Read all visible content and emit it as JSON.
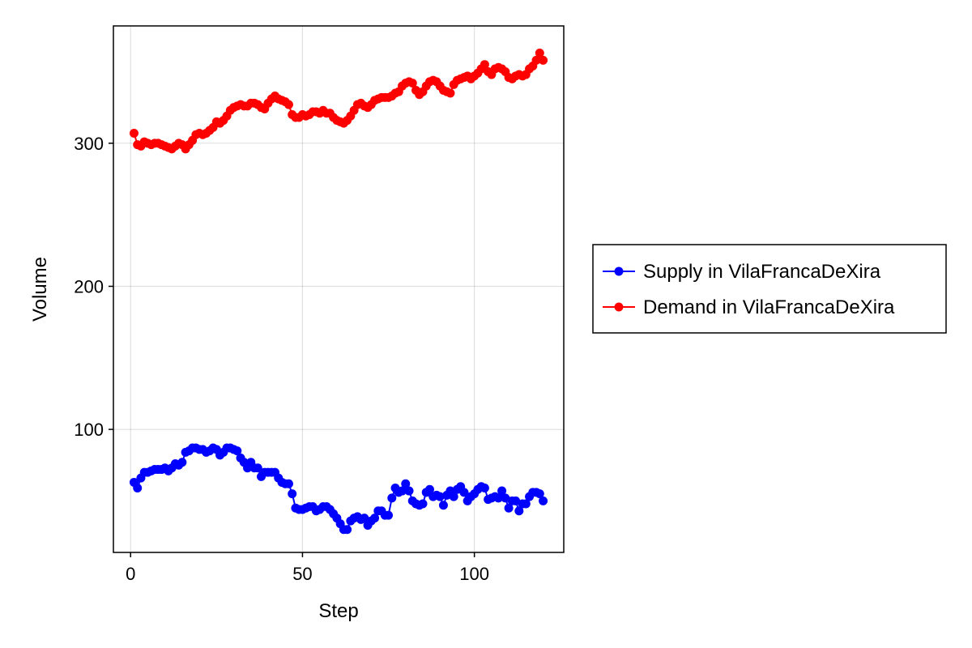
{
  "chart_data": {
    "type": "scatter",
    "title": "",
    "xlabel": "Step",
    "ylabel": "Volume",
    "xlim": [
      -5,
      126
    ],
    "ylim": [
      14,
      382
    ],
    "xticks": [
      0,
      50,
      100
    ],
    "xtick_labels": [
      "0",
      "50",
      "100"
    ],
    "yticks": [
      100,
      200,
      300
    ],
    "ytick_labels": [
      "100",
      "200",
      "300"
    ],
    "grid": true,
    "legend_position": "outside-right",
    "series": [
      {
        "name": "Supply in VilaFrancaDeXira",
        "color": "#0000ff",
        "style": "line+markers",
        "x": [
          1,
          2,
          3,
          4,
          5,
          6,
          7,
          8,
          9,
          10,
          11,
          12,
          13,
          14,
          15,
          16,
          17,
          18,
          19,
          20,
          21,
          22,
          23,
          24,
          25,
          26,
          27,
          28,
          29,
          30,
          31,
          32,
          33,
          34,
          35,
          36,
          37,
          38,
          39,
          40,
          41,
          42,
          43,
          44,
          45,
          46,
          47,
          48,
          49,
          50,
          51,
          52,
          53,
          54,
          55,
          56,
          57,
          58,
          59,
          60,
          61,
          62,
          63,
          64,
          65,
          66,
          67,
          68,
          69,
          70,
          71,
          72,
          73,
          74,
          75,
          76,
          77,
          78,
          79,
          80,
          81,
          82,
          83,
          84,
          85,
          86,
          87,
          88,
          89,
          90,
          91,
          92,
          93,
          94,
          95,
          96,
          97,
          98,
          99,
          100,
          101,
          102,
          103,
          104,
          105,
          106,
          107,
          108,
          109,
          110,
          111,
          112,
          113,
          114,
          115,
          116,
          117,
          118,
          119,
          120
        ],
        "y": [
          63,
          59,
          66,
          70,
          70,
          71,
          72,
          72,
          72,
          73,
          71,
          73,
          76,
          75,
          77,
          84,
          85,
          87,
          87,
          86,
          86,
          84,
          85,
          87,
          86,
          82,
          84,
          87,
          87,
          86,
          85,
          80,
          77,
          73,
          77,
          73,
          73,
          67,
          70,
          70,
          70,
          70,
          66,
          63,
          62,
          62,
          55,
          45,
          44,
          44,
          45,
          46,
          46,
          43,
          44,
          46,
          46,
          44,
          41,
          38,
          34,
          30,
          30,
          36,
          38,
          39,
          37,
          38,
          33,
          36,
          38,
          43,
          43,
          40,
          40,
          52,
          59,
          56,
          57,
          62,
          57,
          50,
          48,
          47,
          48,
          56,
          58,
          53,
          54,
          53,
          47,
          54,
          57,
          53,
          58,
          60,
          56,
          50,
          53,
          55,
          58,
          60,
          59,
          51,
          52,
          53,
          52,
          57,
          52,
          45,
          50,
          50,
          43,
          48,
          48,
          53,
          56,
          56,
          55,
          50
        ]
      },
      {
        "name": "Demand in VilaFrancaDeXira",
        "color": "#ff0000",
        "style": "line+markers",
        "x": [
          1,
          2,
          3,
          4,
          5,
          6,
          7,
          8,
          9,
          10,
          11,
          12,
          13,
          14,
          15,
          16,
          17,
          18,
          19,
          20,
          21,
          22,
          23,
          24,
          25,
          26,
          27,
          28,
          29,
          30,
          31,
          32,
          33,
          34,
          35,
          36,
          37,
          38,
          39,
          40,
          41,
          42,
          43,
          44,
          45,
          46,
          47,
          48,
          49,
          50,
          51,
          52,
          53,
          54,
          55,
          56,
          57,
          58,
          59,
          60,
          61,
          62,
          63,
          64,
          65,
          66,
          67,
          68,
          69,
          70,
          71,
          72,
          73,
          74,
          75,
          76,
          77,
          78,
          79,
          80,
          81,
          82,
          83,
          84,
          85,
          86,
          87,
          88,
          89,
          90,
          91,
          92,
          93,
          94,
          95,
          96,
          97,
          98,
          99,
          100,
          101,
          102,
          103,
          104,
          105,
          106,
          107,
          108,
          109,
          110,
          111,
          112,
          113,
          114,
          115,
          116,
          117,
          118,
          119,
          120
        ],
        "y": [
          307,
          299,
          298,
          301,
          300,
          299,
          300,
          300,
          299,
          298,
          297,
          296,
          298,
          300,
          299,
          296,
          299,
          302,
          306,
          307,
          306,
          307,
          309,
          311,
          315,
          314,
          316,
          319,
          323,
          325,
          326,
          327,
          326,
          326,
          328,
          328,
          327,
          325,
          324,
          328,
          331,
          333,
          331,
          330,
          329,
          327,
          320,
          318,
          318,
          320,
          319,
          320,
          322,
          322,
          321,
          323,
          321,
          321,
          318,
          316,
          315,
          314,
          316,
          319,
          323,
          327,
          328,
          326,
          325,
          327,
          330,
          331,
          332,
          332,
          332,
          333,
          335,
          336,
          340,
          342,
          343,
          342,
          337,
          334,
          336,
          340,
          343,
          344,
          343,
          340,
          337,
          336,
          335,
          341,
          344,
          345,
          346,
          347,
          345,
          347,
          349,
          352,
          355,
          350,
          348,
          352,
          353,
          352,
          350,
          346,
          345,
          347,
          348,
          347,
          348,
          352,
          354,
          358,
          363,
          358
        ]
      }
    ]
  }
}
